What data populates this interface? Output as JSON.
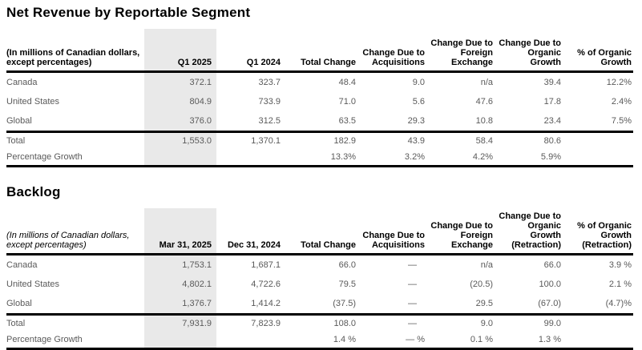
{
  "colors": {
    "band_bg": "#e9e9e9",
    "body_text": "#5a5a5a",
    "heading_text": "#000000",
    "rule": "#000000",
    "page_bg": "#ffffff"
  },
  "tables": [
    {
      "title": "Net Revenue by Reportable Segment",
      "unit_label": "(In millions of Canadian dollars,\nexcept percentages)",
      "unit_label_italic": false,
      "column_headers": [
        "Q1 2025",
        "Q1 2024",
        "Total Change",
        "Change Due to\nAcquisitions",
        "Change Due to\nForeign\nExchange",
        "Change Due to\nOrganic\nGrowth",
        "% of Organic\nGrowth"
      ],
      "rows": [
        {
          "label": "Canada",
          "section": "body",
          "values": [
            "372.1",
            "323.7",
            "48.4",
            "9.0",
            "n/a",
            "39.4",
            "12.2%"
          ]
        },
        {
          "label": "United States",
          "section": "body",
          "values": [
            "804.9",
            "733.9",
            "71.0",
            "5.6",
            "47.6",
            "17.8",
            "2.4%"
          ]
        },
        {
          "label": "Global",
          "section": "body",
          "values": [
            "376.0",
            "312.5",
            "63.5",
            "29.3",
            "10.8",
            "23.4",
            "7.5%"
          ]
        },
        {
          "label": "Total",
          "section": "total",
          "values": [
            "1,553.0",
            "1,370.1",
            "182.9",
            "43.9",
            "58.4",
            "80.6",
            ""
          ]
        },
        {
          "label": "Percentage Growth",
          "section": "growth",
          "values": [
            "",
            "",
            "13.3%",
            "3.2%",
            "4.2%",
            "5.9%",
            ""
          ]
        }
      ]
    },
    {
      "title": "Backlog",
      "unit_label": "(In millions of Canadian dollars,\nexcept percentages)",
      "unit_label_italic": true,
      "column_headers": [
        "Mar 31, 2025",
        "Dec 31, 2024",
        "Total Change",
        "Change Due to\nAcquisitions",
        "Change Due to\nForeign\nExchange",
        "Change Due to\nOrganic\nGrowth\n(Retraction)",
        "% of Organic\nGrowth\n(Retraction)"
      ],
      "rows": [
        {
          "label": "Canada",
          "section": "body",
          "values": [
            "1,753.1",
            "1,687.1",
            "66.0",
            "—",
            "n/a",
            "66.0",
            "3.9 %"
          ]
        },
        {
          "label": "United States",
          "section": "body",
          "values": [
            "4,802.1",
            "4,722.6",
            "79.5",
            "—",
            "(20.5)",
            "100.0",
            "2.1 %"
          ]
        },
        {
          "label": "Global",
          "section": "body",
          "values": [
            "1,376.7",
            "1,414.2",
            "(37.5)",
            "—",
            "29.5",
            "(67.0)",
            "(4.7)%"
          ]
        },
        {
          "label": "Total",
          "section": "total",
          "values": [
            "7,931.9",
            "7,823.9",
            "108.0",
            "—",
            "9.0",
            "99.0",
            ""
          ]
        },
        {
          "label": "Percentage Growth",
          "section": "growth",
          "values": [
            "",
            "",
            "1.4 %",
            "— %",
            "0.1 %",
            "1.3 %",
            ""
          ]
        }
      ]
    }
  ]
}
